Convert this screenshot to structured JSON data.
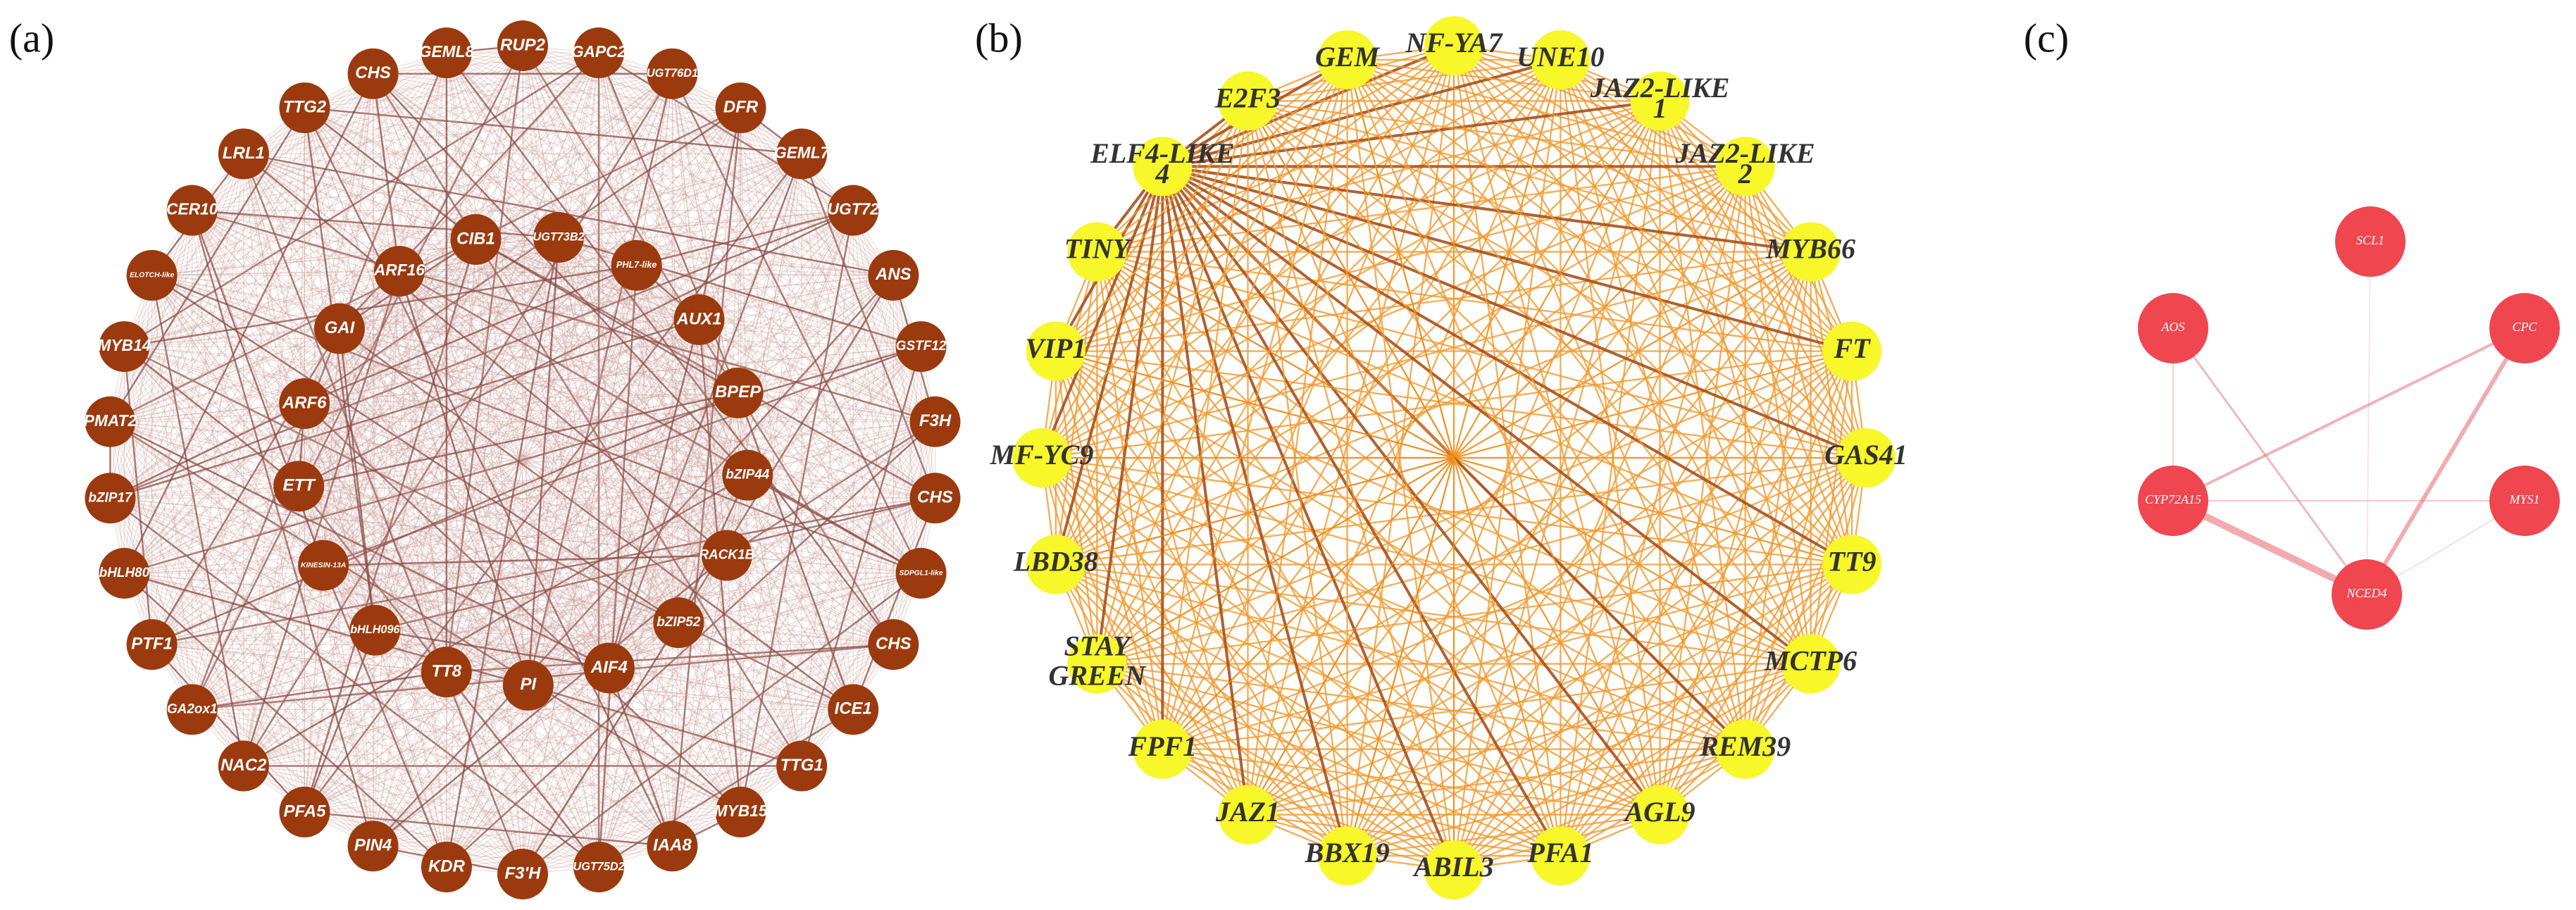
{
  "panels": [
    {
      "label": "(a)",
      "outer_nodes": [
        "RUP2",
        "GAPC2",
        "UGT76D1",
        "DFR",
        "GEML7",
        "UGT72",
        "ANS",
        "GSTF12",
        "F3H",
        "CHS",
        "SDPGL1-like",
        "CHS",
        "ICE1",
        "TTG1",
        "MYB15",
        "IAA8",
        "UGT75D2",
        "F3'H",
        "KDR",
        "PIN4",
        "PFA5",
        "NAC2",
        "GA2ox1",
        "PTF1",
        "bHLH80",
        "bZIP17",
        "PMAT2",
        "MYB14",
        "ELOTCH-like",
        "CER10",
        "LRL1",
        "TTG2",
        "CHS",
        "GEML8"
      ],
      "inner_nodes": [
        "CIB1",
        "UGT73B2",
        "PHL7-like",
        "AUX1",
        "BPEP",
        "bZIP44",
        "RACK1B",
        "bZIP52",
        "AIF4",
        "PI",
        "TT8",
        "bHLH096",
        "KINESIN-13A",
        "ETT",
        "ARF6",
        "GAI",
        "ARF16"
      ]
    },
    {
      "label": "(b)",
      "nodes": [
        [
          "NF-YA7"
        ],
        [
          "UNE10"
        ],
        [
          "JAZ2-LIKE",
          "1"
        ],
        [
          "JAZ2-LIKE",
          "2"
        ],
        [
          "MYB66"
        ],
        [
          "FT"
        ],
        [
          "GAS41"
        ],
        [
          "TT9"
        ],
        [
          "MCTP6"
        ],
        [
          "REM39"
        ],
        [
          "AGL9"
        ],
        [
          "PFA1"
        ],
        [
          "ABIL3"
        ],
        [
          "BBX19"
        ],
        [
          "JAZ1"
        ],
        [
          "FPF1"
        ],
        [
          "STAY",
          "GREEN"
        ],
        [
          "LBD38"
        ],
        [
          "MF-YC9"
        ],
        [
          "VIP1"
        ],
        [
          "TINY"
        ],
        [
          "ELF4-LIKE",
          "4"
        ],
        [
          "E2F3"
        ],
        [
          "GEM"
        ]
      ]
    },
    {
      "label": "(c)",
      "nodes": [
        "SCL1",
        "AOS",
        "CPC",
        "CYP72A15",
        "MYS1",
        "NCED4"
      ]
    }
  ]
}
